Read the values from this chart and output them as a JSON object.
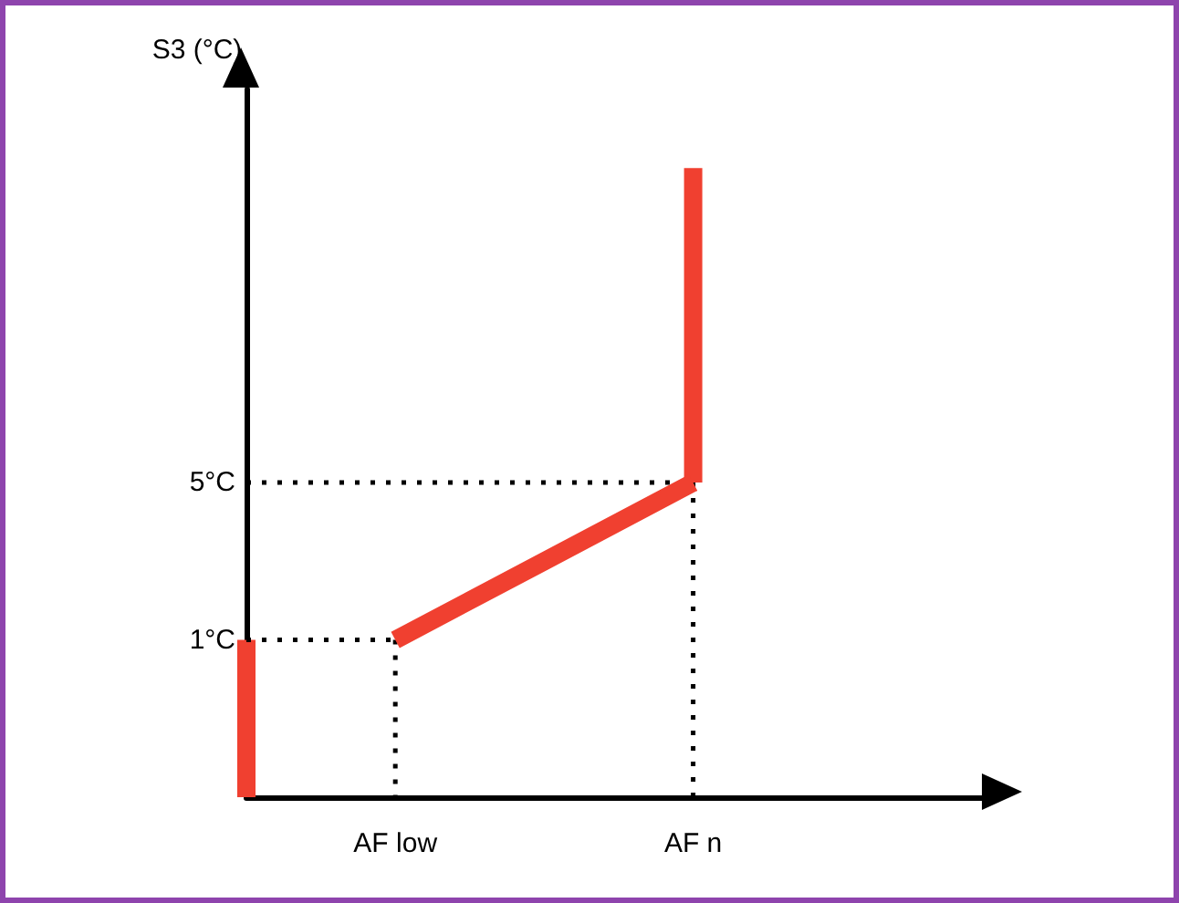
{
  "chart_data": {
    "type": "line",
    "ylabel": "S3 (°C)",
    "categories": [
      null,
      "AF low",
      null,
      "AF n",
      null,
      null
    ],
    "ylim": [
      -3,
      15
    ],
    "yticks": [
      {
        "value": 1,
        "label": "1°C"
      },
      {
        "value": 5,
        "label": "5°C"
      }
    ],
    "grid": false,
    "marker": "none",
    "series": [
      {
        "color": "#000000",
        "line_style": "dotted",
        "x": [
          "AF low",
          "AF low"
        ],
        "values": [
          1,
          -3
        ]
      },
      {
        "color": "#000000",
        "line_style": "dotted",
        "x": [
          "AF n",
          "AF n"
        ],
        "values": [
          5,
          -3
        ]
      },
      {
        "color": "#000000",
        "line_style": "dotted",
        "values": [
          1,
          1,
          null,
          null,
          null,
          null
        ]
      },
      {
        "color": "#000000",
        "line_style": "dotted",
        "values": [
          5,
          5,
          5,
          5,
          null,
          null
        ]
      },
      {
        "type": "bar",
        "color": "#f04030",
        "base": [
          -3,
          null,
          null,
          5,
          null,
          null
        ],
        "values": [
          4,
          null,
          null,
          8,
          null,
          null
        ]
      },
      {
        "color": "#f04030",
        "line_style": "solid",
        "values": [
          null,
          1,
          3,
          5,
          null,
          null
        ]
      }
    ]
  }
}
